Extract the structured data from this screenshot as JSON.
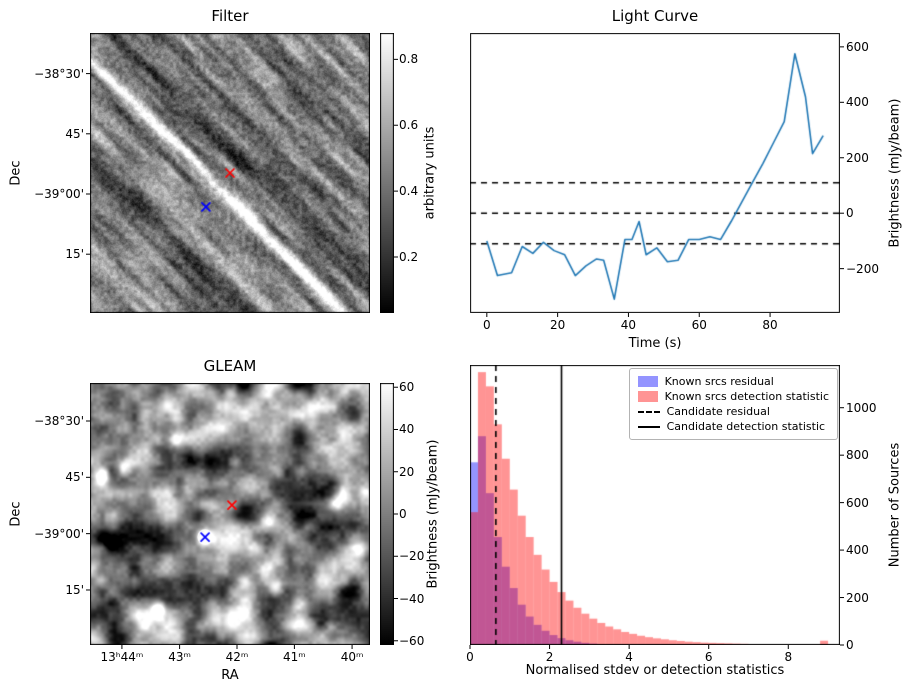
{
  "chart_data": [
    {
      "id": "filter",
      "type": "heatmap",
      "title": "Filter",
      "ylabel": "Dec",
      "ytick_labels": [
        "−38°30'",
        "45'",
        "−39°00'",
        "15'"
      ],
      "texture": "grayscale noise image with bright diagonal streaks running upper-left to lower-right",
      "colorbar": {
        "label": "arbitrary units",
        "ticks": [
          0.2,
          0.4,
          0.6,
          0.8
        ],
        "vmin": 0.03,
        "vmax": 0.88
      },
      "markers": [
        {
          "shape": "x",
          "color": "#ff0000",
          "fx": 0.5,
          "fy": 0.5
        },
        {
          "shape": "x",
          "color": "#0000ff",
          "fx": 0.414,
          "fy": 0.621
        }
      ]
    },
    {
      "id": "light_curve",
      "type": "line",
      "title": "Light Curve",
      "xlabel": "Time (s)",
      "ylabel": "Brightness (mJy/beam)",
      "xlim": [
        -4.75,
        99.75
      ],
      "ylim": [
        -360,
        650
      ],
      "xticks": [
        0,
        20,
        40,
        60,
        80
      ],
      "yticks": [
        -200,
        0,
        200,
        400,
        600
      ],
      "line_color": "#1f77b4",
      "dashed_hlines": [
        110,
        0,
        -110
      ],
      "x": [
        0,
        3,
        7,
        10,
        13,
        16,
        19,
        22,
        25,
        28,
        31,
        33,
        36,
        39,
        41,
        43,
        45,
        48,
        51,
        54,
        57,
        60,
        63,
        66,
        69,
        72,
        75,
        78,
        81,
        84,
        87,
        90,
        92,
        95
      ],
      "y": [
        -100,
        -225,
        -215,
        -120,
        -145,
        -105,
        -135,
        -150,
        -225,
        -190,
        -165,
        -170,
        -310,
        -95,
        -95,
        -30,
        -150,
        -125,
        -175,
        -170,
        -95,
        -95,
        -85,
        -95,
        -30,
        40,
        110,
        180,
        255,
        330,
        575,
        420,
        215,
        280
      ]
    },
    {
      "id": "gleam",
      "type": "heatmap",
      "title": "GLEAM",
      "xlabel": "RA",
      "ylabel": "Dec",
      "xtick_labels": [
        "13ʰ44ᵐ",
        "43ᵐ",
        "42ᵐ",
        "41ᵐ",
        "40ᵐ"
      ],
      "ytick_labels": [
        "−38°30'",
        "45'",
        "−39°00'",
        "15'"
      ],
      "texture": "smoothed grayscale sky map with bright point-source blobs",
      "colorbar": {
        "label": "Brightness (mJy/beam)",
        "ticks": [
          60,
          40,
          20,
          0,
          -20,
          -40,
          -60
        ],
        "vmin": -62,
        "vmax": 62
      },
      "markers": [
        {
          "shape": "x",
          "color": "#ff0000",
          "fx": 0.507,
          "fy": 0.466
        },
        {
          "shape": "x",
          "color": "#0000ff",
          "fx": 0.411,
          "fy": 0.588,
          "circled": true
        }
      ]
    },
    {
      "id": "histogram",
      "type": "bar",
      "xlabel": "Normalised stdev or detection statistics",
      "ylabel": "Number of Sources",
      "xlim": [
        0,
        9.3
      ],
      "ylim": [
        0,
        1180
      ],
      "xticks": [
        0,
        2,
        4,
        6,
        8
      ],
      "yticks": [
        0,
        200,
        400,
        600,
        800,
        1000
      ],
      "bin_start": 0,
      "bin_width": 0.2,
      "legend_position": "upper right",
      "series": [
        {
          "label": "Known srcs residual",
          "color": "#0000ff",
          "alpha": 0.42,
          "counts": [
            770,
            880,
            640,
            455,
            330,
            240,
            170,
            120,
            85,
            60,
            42,
            29,
            20,
            14,
            9,
            6,
            4,
            3,
            2,
            1,
            1,
            1,
            0,
            0,
            0,
            0,
            0,
            0,
            0,
            0,
            0,
            0,
            0,
            0,
            0,
            0,
            0,
            0,
            0,
            0,
            0,
            0,
            0,
            0,
            0,
            0
          ]
        },
        {
          "label": "Known srcs detection statistic",
          "color": "#ff0000",
          "alpha": 0.42,
          "counts": [
            560,
            1150,
            1090,
            930,
            785,
            655,
            545,
            455,
            380,
            318,
            266,
            223,
            187,
            157,
            132,
            111,
            93,
            78,
            66,
            55,
            47,
            39,
            33,
            28,
            24,
            20,
            17,
            14,
            12,
            10,
            9,
            8,
            7,
            6,
            5,
            4,
            4,
            3,
            3,
            3,
            2,
            2,
            2,
            1,
            18,
            1
          ]
        }
      ],
      "vlines": [
        {
          "label": "Candidate residual",
          "x": 0.65,
          "style": "dashed",
          "color": "#000000"
        },
        {
          "label": "Candidate detection statistic",
          "x": 2.3,
          "style": "solid",
          "color": "#000000"
        }
      ]
    }
  ]
}
